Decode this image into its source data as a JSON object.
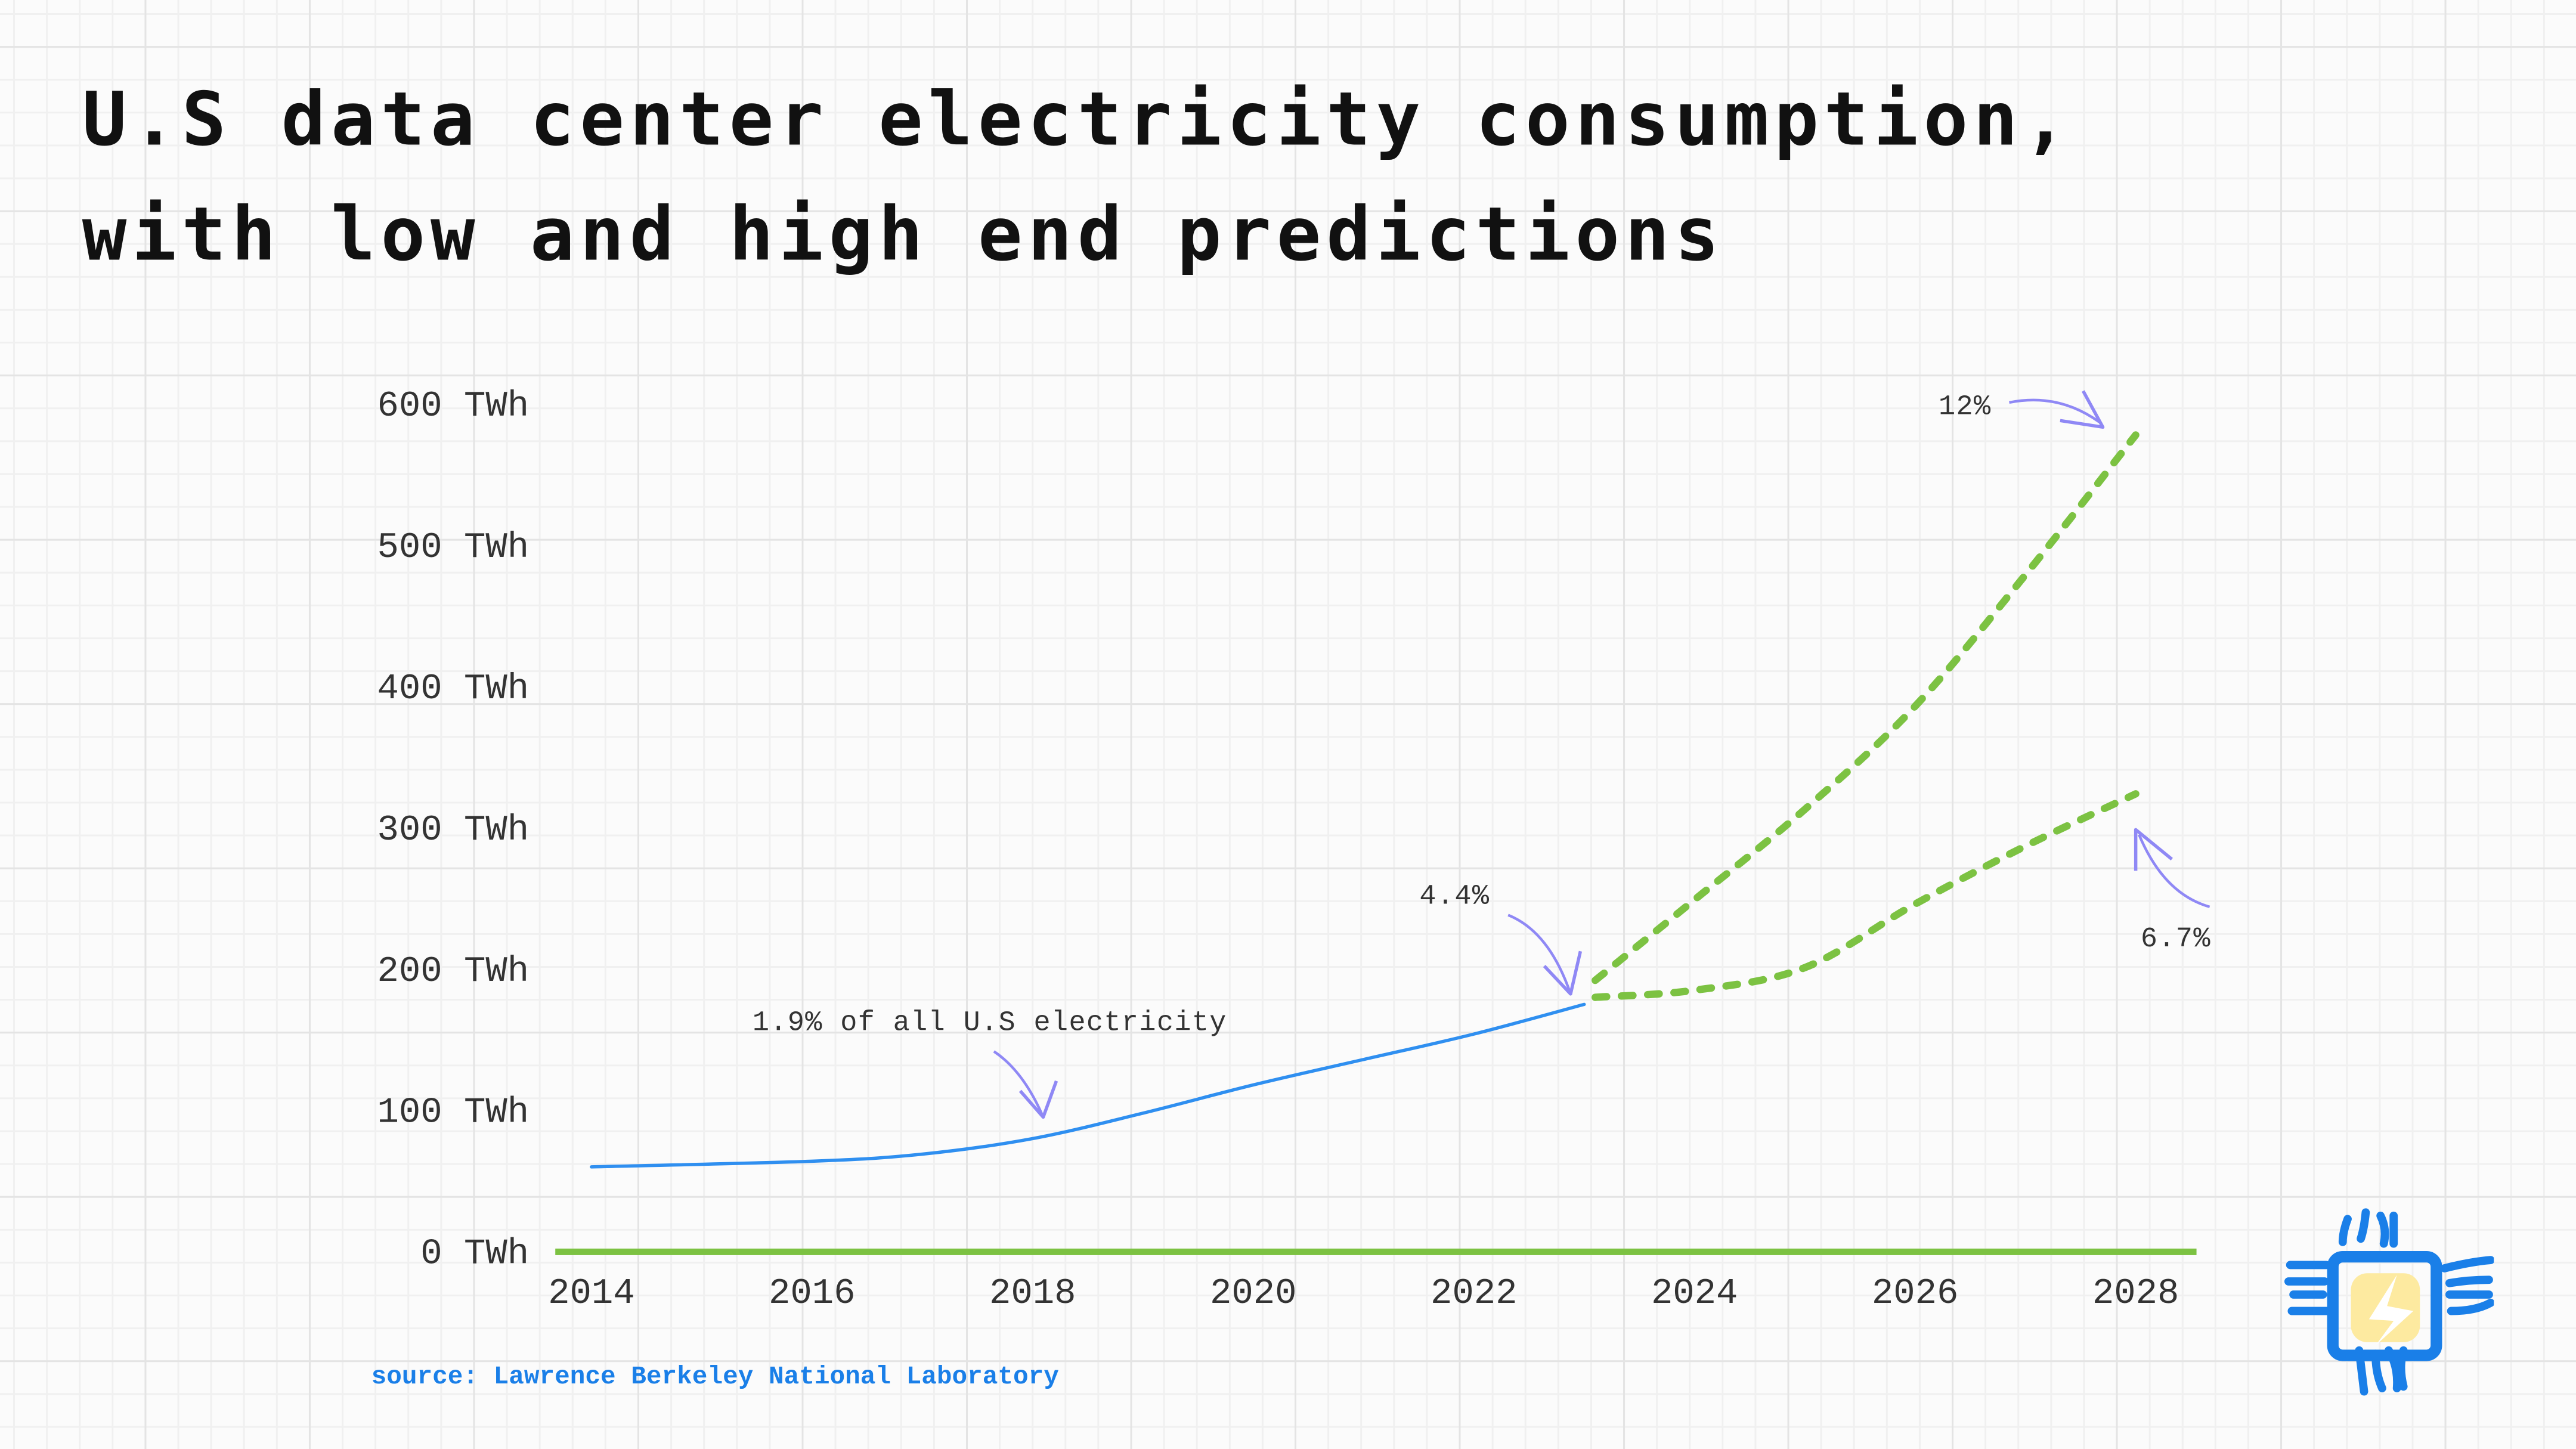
{
  "chart_data": {
    "type": "line",
    "title": "U.S data center electricity consumption,",
    "subtitle": "with low and high end predictions",
    "xlabel": "",
    "ylabel": "",
    "xlim": [
      2014,
      2028
    ],
    "ylim": [
      0,
      600
    ],
    "x_ticks": [
      "2014",
      "2016",
      "2018",
      "2020",
      "2022",
      "2024",
      "2026",
      "2028"
    ],
    "y_ticks": [
      "0 TWh",
      "100 TWh",
      "200 TWh",
      "300 TWh",
      "400 TWh",
      "500 TWh",
      "600 TWh"
    ],
    "grid": true,
    "series": [
      {
        "name": "historical",
        "style": "solid",
        "color": "#2f8ff0",
        "x": [
          2014,
          2016,
          2017,
          2018,
          2019,
          2020,
          2021,
          2022,
          2023
        ],
        "values": [
          59,
          63,
          68,
          79,
          97,
          117,
          135,
          153,
          174
        ]
      },
      {
        "name": "high-end prediction",
        "style": "dashed",
        "color": "#7cc242",
        "x": [
          2023.1,
          2024,
          2025,
          2026,
          2027,
          2028
        ],
        "values": [
          191,
          248,
          312,
          385,
          478,
          577
        ]
      },
      {
        "name": "low-end prediction",
        "style": "dashed",
        "color": "#7cc242",
        "x": [
          2023.1,
          2024,
          2025,
          2026,
          2027,
          2028
        ],
        "values": [
          179,
          184,
          200,
          245,
          286,
          323
        ]
      }
    ],
    "annotations": [
      {
        "text": "1.9% of all U.S electricity",
        "x": 2018,
        "y": 79
      },
      {
        "text": "4.4%",
        "x": 2023,
        "y": 174
      },
      {
        "text": "12%",
        "x": 2028,
        "y": 577
      },
      {
        "text": "6.7%",
        "x": 2028,
        "y": 323
      }
    ],
    "source": "source: Lawrence Berkeley National Laboratory"
  },
  "colors": {
    "axis": "#7cc242",
    "line": "#2f8ff0",
    "arrow": "#8f88f5",
    "logo_blue": "#1a7fe8",
    "logo_yellow": "#fdeaa0"
  },
  "logo_icon": "chip-lightning-icon"
}
